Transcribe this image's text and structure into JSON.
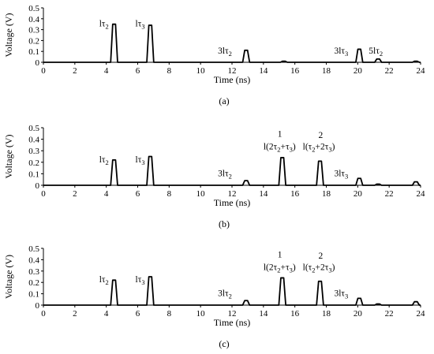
{
  "chart_data": [
    {
      "type": "line",
      "panel": "(a)",
      "xlabel": "Time (ns)",
      "ylabel": "Voltage (V)",
      "xlim": [
        0,
        24
      ],
      "ylim": [
        0,
        0.5
      ],
      "x_ticks": [
        "0",
        "2",
        "4",
        "6",
        "8",
        "10",
        "12",
        "14",
        "16",
        "18",
        "20",
        "22",
        "24"
      ],
      "y_ticks": [
        "0",
        "0.1",
        "0.2",
        "0.3",
        "0.4",
        "0.5"
      ],
      "pulses": [
        {
          "t": 4.5,
          "v": 0.35
        },
        {
          "t": 6.8,
          "v": 0.34
        },
        {
          "t": 12.9,
          "v": 0.11
        },
        {
          "t": 15.3,
          "v": 0.01
        },
        {
          "t": 20.1,
          "v": 0.12
        },
        {
          "t": 21.3,
          "v": 0.03
        },
        {
          "t": 23.7,
          "v": 0.01
        }
      ],
      "annotations": [
        {
          "html": "lτ2",
          "main": "l",
          "greek": "τ",
          "sub": "2",
          "x": 3.55,
          "y": 0.33
        },
        {
          "html": "lτ3",
          "main": "l",
          "greek": "τ",
          "sub": "3",
          "x": 5.85,
          "y": 0.33
        },
        {
          "main": "3l",
          "greek": "τ",
          "sub": "2",
          "x": 11.1,
          "y": 0.08
        },
        {
          "main": "3l",
          "greek": "τ",
          "sub": "3",
          "x": 18.5,
          "y": 0.08
        },
        {
          "main": "5l",
          "greek": "τ",
          "sub": "2",
          "x": 20.7,
          "y": 0.08
        }
      ]
    },
    {
      "type": "line",
      "panel": "(b)",
      "xlabel": "Time (ns)",
      "ylabel": "Voltage (V)",
      "xlim": [
        0,
        24
      ],
      "ylim": [
        0,
        0.5
      ],
      "x_ticks": [
        "0",
        "2",
        "4",
        "6",
        "8",
        "10",
        "12",
        "14",
        "16",
        "18",
        "20",
        "22",
        "24"
      ],
      "y_ticks": [
        "0",
        "0.1",
        "0.2",
        "0.3",
        "0.4",
        "0.5"
      ],
      "pulses": [
        {
          "t": 4.5,
          "v": 0.22
        },
        {
          "t": 6.8,
          "v": 0.25
        },
        {
          "t": 12.9,
          "v": 0.04
        },
        {
          "t": 15.2,
          "v": 0.24
        },
        {
          "t": 17.6,
          "v": 0.21
        },
        {
          "t": 20.1,
          "v": 0.06
        },
        {
          "t": 21.3,
          "v": 0.01
        },
        {
          "t": 23.7,
          "v": 0.03
        }
      ],
      "annotations": [
        {
          "main": "l",
          "greek": "τ",
          "sub": "2",
          "x": 3.55,
          "y": 0.2
        },
        {
          "main": "l",
          "greek": "τ",
          "sub": "3",
          "x": 5.85,
          "y": 0.2
        },
        {
          "main": "3l",
          "greek": "τ",
          "sub": "2",
          "x": 11.1,
          "y": 0.08
        },
        {
          "main": "3l",
          "greek": "τ",
          "sub": "3",
          "x": 18.5,
          "y": 0.08
        },
        {
          "label": "1",
          "x": 14.9,
          "y": 0.42
        },
        {
          "label": "l(2τ2+τ3)",
          "x": 14.0,
          "y": 0.31
        },
        {
          "label": "2",
          "x": 17.5,
          "y": 0.41
        },
        {
          "label": "l(τ2+2τ3)",
          "x": 16.5,
          "y": 0.31
        }
      ]
    },
    {
      "type": "line",
      "panel": "(c)",
      "xlabel": "Time (ns)",
      "ylabel": "Voltage (V)",
      "xlim": [
        0,
        24
      ],
      "ylim": [
        0,
        0.5
      ],
      "x_ticks": [
        "0",
        "2",
        "4",
        "6",
        "8",
        "10",
        "12",
        "14",
        "16",
        "18",
        "20",
        "22",
        "24"
      ],
      "y_ticks": [
        "0",
        "0.1",
        "0.2",
        "0.3",
        "0.4",
        "0.5"
      ],
      "pulses": [
        {
          "t": 4.5,
          "v": 0.22
        },
        {
          "t": 6.8,
          "v": 0.25
        },
        {
          "t": 12.9,
          "v": 0.04
        },
        {
          "t": 15.2,
          "v": 0.24
        },
        {
          "t": 17.6,
          "v": 0.21
        },
        {
          "t": 20.1,
          "v": 0.06
        },
        {
          "t": 21.3,
          "v": 0.01
        },
        {
          "t": 23.7,
          "v": 0.03
        }
      ],
      "annotations": [
        {
          "main": "l",
          "greek": "τ",
          "sub": "2",
          "x": 3.55,
          "y": 0.2
        },
        {
          "main": "l",
          "greek": "τ",
          "sub": "3",
          "x": 5.85,
          "y": 0.2
        },
        {
          "main": "3l",
          "greek": "τ",
          "sub": "2",
          "x": 11.1,
          "y": 0.08
        },
        {
          "main": "3l",
          "greek": "τ",
          "sub": "3",
          "x": 18.5,
          "y": 0.08
        },
        {
          "label": "1",
          "x": 14.9,
          "y": 0.42
        },
        {
          "label": "l(2τ2+τ3)",
          "x": 14.0,
          "y": 0.31
        },
        {
          "label": "2",
          "x": 17.5,
          "y": 0.41
        },
        {
          "label": "l(τ2+2τ3)",
          "x": 16.5,
          "y": 0.31
        }
      ]
    }
  ]
}
